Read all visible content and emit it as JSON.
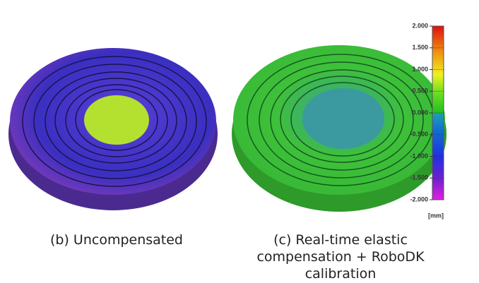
{
  "panels": [
    {
      "caption": [
        "(b) Uncompensated"
      ]
    },
    {
      "caption": [
        "(c) Real-time elastic",
        "compensation + RoboDK",
        "calibration"
      ]
    }
  ],
  "colorbar": {
    "lim": [
      -2,
      2
    ],
    "ticks": [
      {
        "value": 2,
        "label": "2.000"
      },
      {
        "value": 1.5,
        "label": "1.500"
      },
      {
        "value": 1,
        "label": "1.000"
      },
      {
        "value": 0.5,
        "label": "0.500"
      },
      {
        "value": 0,
        "label": "0.000"
      },
      {
        "value": -0.5,
        "label": "-0.500"
      },
      {
        "value": -1,
        "label": "-1.000"
      },
      {
        "value": -1.5,
        "label": "-1.500"
      },
      {
        "value": -2,
        "label": "-2.000"
      }
    ],
    "unit": "[mm]"
  }
}
